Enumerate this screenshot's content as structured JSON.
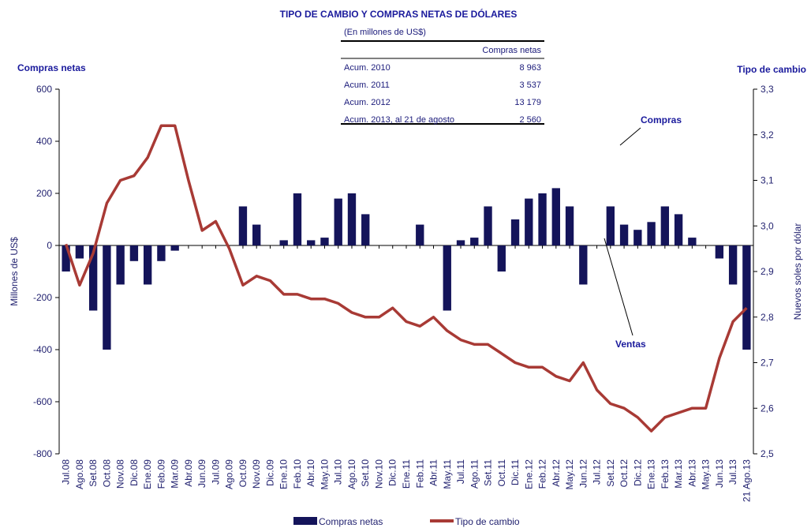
{
  "chart_data": {
    "type": "bar_line",
    "title": "TIPO DE CAMBIO Y COMPRAS NETAS DE DÓLARES",
    "y_title": "Compras netas",
    "y2_title": "Tipo de cambio",
    "y_label": "Millones de US$",
    "y2_label": "Nuevos soles por dólar",
    "annotations": [
      "Compras",
      "Ventas"
    ],
    "categories": [
      "Jul.08",
      "Ago.08",
      "Set.08",
      "Oct.08",
      "Nov.08",
      "Dic.08",
      "Ene.09",
      "Feb.09",
      "Mar.09",
      "Abr.09",
      "Jun.09",
      "Jul.09",
      "Ago.09",
      "Oct.09",
      "Nov.09",
      "Dic.09",
      "Ene.10",
      "Feb.10",
      "Abr.10",
      "May.10",
      "Jul.10",
      "Ago.10",
      "Set.10",
      "Nov.10",
      "Dic.10",
      "Ene.11",
      "Feb.11",
      "Abr.11",
      "May.11",
      "Jul.11",
      "Ago.11",
      "Set.11",
      "Oct.11",
      "Dic.11",
      "Ene.12",
      "Feb.12",
      "Abr.12",
      "May.12",
      "Jun.12",
      "Jul.12",
      "Set.12",
      "Oct.12",
      "Dic.12",
      "Ene.13",
      "Feb.13",
      "Mar.13",
      "Abr.13",
      "May.13",
      "Jun.13",
      "Jul.13",
      "21 Ago.13"
    ],
    "series": [
      {
        "name": "Compras netas",
        "color": "#14145a",
        "values": [
          -100,
          -50,
          -250,
          -400,
          -150,
          -60,
          -150,
          -60,
          -20,
          0,
          0,
          0,
          0,
          150,
          80,
          0,
          20,
          200,
          20,
          30,
          180,
          200,
          120,
          0,
          0,
          0,
          80,
          0,
          -250,
          20,
          30,
          150,
          -100,
          100,
          180,
          200,
          220,
          150,
          -150,
          0,
          150,
          80,
          60,
          90,
          150,
          120,
          30,
          0,
          -50,
          -150,
          -400
        ]
      },
      {
        "name": "Tipo de cambio",
        "color": "#a83a35",
        "axis": "y2",
        "values": [
          2.96,
          2.87,
          2.94,
          3.05,
          3.1,
          3.11,
          3.15,
          3.22,
          3.22,
          3.1,
          2.99,
          3.01,
          2.95,
          2.87,
          2.89,
          2.88,
          2.85,
          2.85,
          2.84,
          2.84,
          2.83,
          2.81,
          2.8,
          2.8,
          2.82,
          2.79,
          2.78,
          2.8,
          2.77,
          2.75,
          2.74,
          2.74,
          2.72,
          2.7,
          2.69,
          2.69,
          2.67,
          2.66,
          2.7,
          2.64,
          2.61,
          2.6,
          2.58,
          2.55,
          2.58,
          2.59,
          2.6,
          2.6,
          2.71,
          2.79,
          2.82
        ]
      }
    ],
    "ylim": [
      -800,
      600
    ],
    "yticks": [
      -800,
      -600,
      -400,
      -200,
      0,
      200,
      400,
      600
    ],
    "y2lim": [
      2.5,
      3.3
    ],
    "y2ticks": [
      {
        "value": 2.5,
        "label": "2,5"
      },
      {
        "value": 2.6,
        "label": "2,6"
      },
      {
        "value": 2.7,
        "label": "2,7"
      },
      {
        "value": 2.8,
        "label": "2,8"
      },
      {
        "value": 2.9,
        "label": "2,9"
      },
      {
        "value": 3.0,
        "label": "3,0"
      },
      {
        "value": 3.1,
        "label": "3,1"
      },
      {
        "value": 3.2,
        "label": "3,2"
      },
      {
        "value": 3.3,
        "label": "3,3"
      }
    ],
    "legend": "bottom",
    "table": {
      "subtitle": "(En millones de US$)",
      "header": "Compras netas",
      "labels": [
        "Acum. 2010",
        "Acum. 2011",
        "Acum. 2012",
        "Acum. 2013, al 21 de agosto"
      ],
      "values": [
        8963,
        3537,
        13179,
        2560
      ],
      "value_labels": [
        "8 963",
        "3 537",
        "13 179",
        "2 560"
      ]
    }
  }
}
